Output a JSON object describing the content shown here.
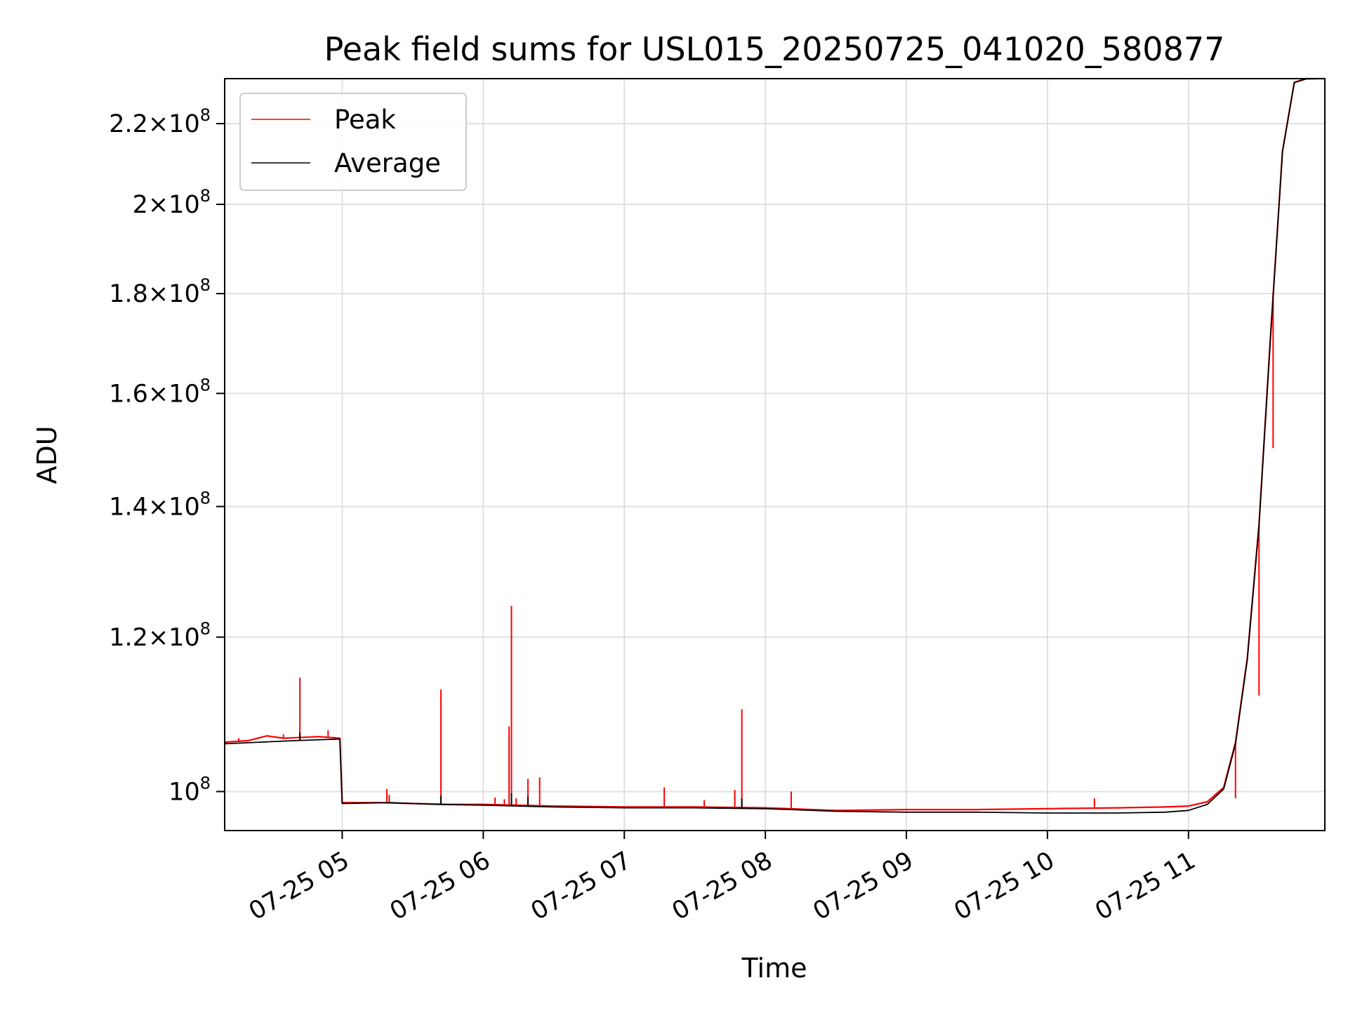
{
  "chart_data": {
    "type": "line",
    "title": "Peak field sums for USL015_20250725_041020_580877",
    "xlabel": "Time",
    "ylabel": "ADU",
    "x_tick_labels": [
      "07-25 05",
      "07-25 06",
      "07-25 07",
      "07-25 08",
      "07-25 09",
      "07-25 10",
      "07-25 11"
    ],
    "x_tick_times": [
      "2025-07-25T05:00",
      "2025-07-25T06:00",
      "2025-07-25T07:00",
      "2025-07-25T08:00",
      "2025-07-25T09:00",
      "2025-07-25T10:00",
      "2025-07-25T11:00"
    ],
    "xlim": [
      "2025-07-25T04:10",
      "2025-07-25T11:58"
    ],
    "y_scale": "log",
    "ylim": [
      95500000,
      232000000
    ],
    "y_ticks": [
      {
        "value": 100000000,
        "mantissa": "",
        "exp": "8"
      },
      {
        "value": 120000000,
        "mantissa": "1.2",
        "exp": "8"
      },
      {
        "value": 140000000,
        "mantissa": "1.4",
        "exp": "8"
      },
      {
        "value": 160000000,
        "mantissa": "1.6",
        "exp": "8"
      },
      {
        "value": 180000000,
        "mantissa": "1.8",
        "exp": "8"
      },
      {
        "value": 200000000,
        "mantissa": "2",
        "exp": "8"
      },
      {
        "value": 220000000,
        "mantissa": "2.2",
        "exp": "8"
      }
    ],
    "times_symbol": "×",
    "base": "10",
    "grid": true,
    "legend_position": "top-left",
    "series": [
      {
        "name": "Peak",
        "color": "#ff0000",
        "points": [
          [
            "2025-07-25T04:10",
            106000000
          ],
          [
            "2025-07-25T04:20",
            106200000
          ],
          [
            "2025-07-25T04:28",
            106800000
          ],
          [
            "2025-07-25T04:35",
            106500000
          ],
          [
            "2025-07-25T04:43",
            106600000
          ],
          [
            "2025-07-25T04:50",
            106700000
          ],
          [
            "2025-07-25T04:59",
            106500000
          ],
          [
            "2025-07-25T05:00",
            98700000
          ],
          [
            "2025-07-25T05:15",
            98700000
          ],
          [
            "2025-07-25T05:30",
            98600000
          ],
          [
            "2025-07-25T05:45",
            98500000
          ],
          [
            "2025-07-25T06:00",
            98500000
          ],
          [
            "2025-07-25T06:30",
            98300000
          ],
          [
            "2025-07-25T07:00",
            98200000
          ],
          [
            "2025-07-25T07:30",
            98200000
          ],
          [
            "2025-07-25T08:00",
            98100000
          ],
          [
            "2025-07-25T08:30",
            97800000
          ],
          [
            "2025-07-25T09:00",
            97900000
          ],
          [
            "2025-07-25T09:30",
            97900000
          ],
          [
            "2025-07-25T10:00",
            98000000
          ],
          [
            "2025-07-25T10:30",
            98100000
          ],
          [
            "2025-07-25T10:50",
            98200000
          ],
          [
            "2025-07-25T11:00",
            98300000
          ],
          [
            "2025-07-25T11:08",
            98800000
          ],
          [
            "2025-07-25T11:15",
            100500000
          ],
          [
            "2025-07-25T11:20",
            106000000
          ],
          [
            "2025-07-25T11:25",
            117000000
          ],
          [
            "2025-07-25T11:30",
            137000000
          ],
          [
            "2025-07-25T11:35",
            172000000
          ],
          [
            "2025-07-25T11:40",
            213000000
          ],
          [
            "2025-07-25T11:45",
            231000000
          ],
          [
            "2025-07-25T11:50",
            232000000
          ],
          [
            "2025-07-25T11:58",
            232000000
          ]
        ],
        "spikes": [
          [
            "2025-07-25T04:42",
            114400000
          ],
          [
            "2025-07-25T04:16",
            106500000
          ],
          [
            "2025-07-25T04:24",
            106600000
          ],
          [
            "2025-07-25T04:35",
            107000000
          ],
          [
            "2025-07-25T04:54",
            107500000
          ],
          [
            "2025-07-25T05:19",
            100300000
          ],
          [
            "2025-07-25T05:20",
            99600000
          ],
          [
            "2025-07-25T05:42",
            112800000
          ],
          [
            "2025-07-25T06:05",
            99300000
          ],
          [
            "2025-07-25T06:09",
            99100000
          ],
          [
            "2025-07-25T06:11",
            108000000
          ],
          [
            "2025-07-25T06:12",
            124500000
          ],
          [
            "2025-07-25T06:14",
            99200000
          ],
          [
            "2025-07-25T06:19",
            101500000
          ],
          [
            "2025-07-25T06:24",
            101700000
          ],
          [
            "2025-07-25T07:17",
            100500000
          ],
          [
            "2025-07-25T07:34",
            99000000
          ],
          [
            "2025-07-25T07:47",
            100200000
          ],
          [
            "2025-07-25T07:50",
            110200000
          ],
          [
            "2025-07-25T08:11",
            100000000
          ],
          [
            "2025-07-25T10:20",
            99200000
          ],
          [
            "2025-07-25T11:20",
            99200000
          ],
          [
            "2025-07-25T11:30",
            112000000
          ],
          [
            "2025-07-25T11:36",
            150000000
          ]
        ]
      },
      {
        "name": "Average",
        "color": "#000000",
        "points": [
          [
            "2025-07-25T04:10",
            105800000
          ],
          [
            "2025-07-25T04:25",
            106000000
          ],
          [
            "2025-07-25T04:40",
            106200000
          ],
          [
            "2025-07-25T04:59",
            106400000
          ],
          [
            "2025-07-25T05:00",
            98600000
          ],
          [
            "2025-07-25T05:20",
            98700000
          ],
          [
            "2025-07-25T05:40",
            98500000
          ],
          [
            "2025-07-25T06:00",
            98400000
          ],
          [
            "2025-07-25T06:30",
            98200000
          ],
          [
            "2025-07-25T07:00",
            98100000
          ],
          [
            "2025-07-25T07:30",
            98100000
          ],
          [
            "2025-07-25T08:00",
            98000000
          ],
          [
            "2025-07-25T08:30",
            97700000
          ],
          [
            "2025-07-25T09:00",
            97600000
          ],
          [
            "2025-07-25T09:30",
            97600000
          ],
          [
            "2025-07-25T10:00",
            97500000
          ],
          [
            "2025-07-25T10:30",
            97500000
          ],
          [
            "2025-07-25T10:50",
            97600000
          ],
          [
            "2025-07-25T11:00",
            97800000
          ],
          [
            "2025-07-25T11:08",
            98500000
          ],
          [
            "2025-07-25T11:15",
            100300000
          ],
          [
            "2025-07-25T11:20",
            105800000
          ],
          [
            "2025-07-25T11:25",
            116800000
          ],
          [
            "2025-07-25T11:30",
            136800000
          ],
          [
            "2025-07-25T11:35",
            171800000
          ],
          [
            "2025-07-25T11:40",
            212800000
          ],
          [
            "2025-07-25T11:45",
            230900000
          ],
          [
            "2025-07-25T11:50",
            231900000
          ],
          [
            "2025-07-25T11:58",
            232000000
          ]
        ],
        "spikes": [
          [
            "2025-07-25T04:42",
            107200000
          ],
          [
            "2025-07-25T05:42",
            99500000
          ],
          [
            "2025-07-25T06:12",
            99800000
          ],
          [
            "2025-07-25T06:19",
            99400000
          ],
          [
            "2025-07-25T07:50",
            99200000
          ]
        ]
      }
    ]
  }
}
